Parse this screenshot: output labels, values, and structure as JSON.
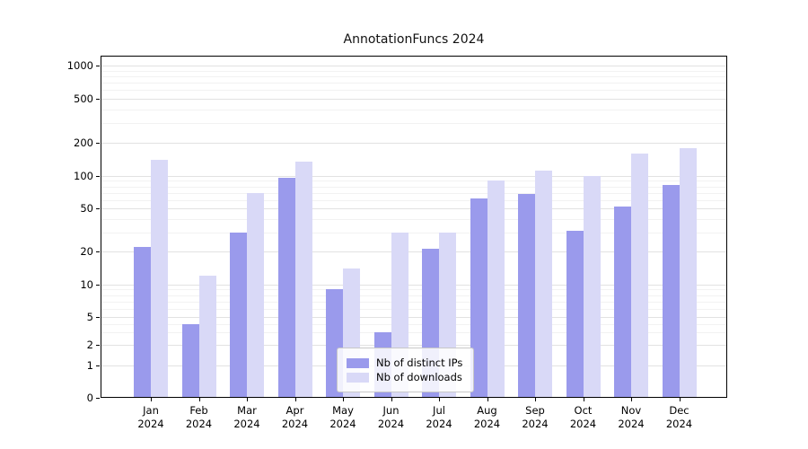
{
  "chart_data": {
    "type": "bar",
    "title": "AnnotationFuncs 2024",
    "categories": [
      "Jan 2024",
      "Feb 2024",
      "Mar 2024",
      "Apr 2024",
      "May 2024",
      "Jun 2024",
      "Jul 2024",
      "Aug 2024",
      "Sep 2024",
      "Oct 2024",
      "Nov 2024",
      "Dec 2024"
    ],
    "series": [
      {
        "name": "Nb of distinct IPs",
        "color": "#9a9aec",
        "values": [
          22,
          4,
          30,
          97,
          9,
          3,
          21,
          62,
          68,
          31,
          52,
          83
        ]
      },
      {
        "name": "Nb of downloads",
        "color": "#d9d9f7",
        "values": [
          140,
          12,
          70,
          135,
          14,
          30,
          30,
          90,
          112,
          100,
          160,
          180
        ]
      }
    ],
    "yscale": "symlog",
    "yticks": [
      0,
      1,
      2,
      5,
      10,
      20,
      50,
      100,
      200,
      500,
      1000
    ],
    "ylim": [
      0,
      1000
    ],
    "xlabel": "",
    "ylabel": "",
    "grid": true,
    "legend_position": "lower center"
  }
}
